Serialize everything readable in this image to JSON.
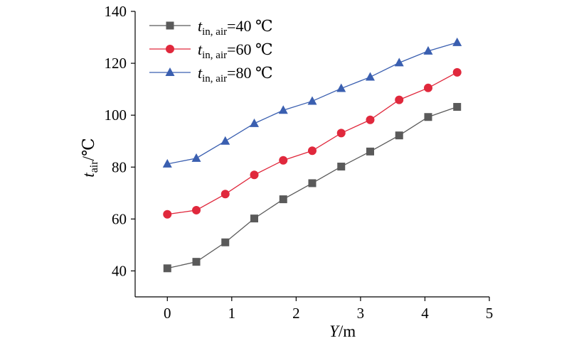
{
  "chart_data": {
    "type": "line",
    "xlabel": {
      "var": "Y",
      "unit": "/m"
    },
    "ylabel": {
      "var": "t",
      "sub": "air",
      "unit": "/℃"
    },
    "xlim": [
      -0.5,
      5
    ],
    "ylim": [
      30,
      140
    ],
    "xticks": [
      0,
      1,
      2,
      3,
      4,
      5
    ],
    "yticks": [
      40,
      60,
      80,
      100,
      120,
      140
    ],
    "legend_position": "top-left",
    "x": [
      0,
      0.45,
      0.9,
      1.35,
      1.8,
      2.25,
      2.7,
      3.15,
      3.6,
      4.05,
      4.5
    ],
    "series": [
      {
        "legend": {
          "var": "t",
          "sub": "in, air",
          "suffix": "=40 ℃"
        },
        "marker": "square",
        "color": "#5a5a5a",
        "values": [
          41,
          43.5,
          51,
          60.2,
          67.6,
          73.8,
          80.2,
          86,
          92.2,
          99.3,
          103.2
        ]
      },
      {
        "legend": {
          "var": "t",
          "sub": "in, air",
          "suffix": "=60 ℃"
        },
        "marker": "circle",
        "color": "#e0283c",
        "values": [
          61.8,
          63.4,
          69.6,
          77,
          82.6,
          86.3,
          93.1,
          98.2,
          105.9,
          110.5,
          116.5
        ]
      },
      {
        "legend": {
          "var": "t",
          "sub": "in, air",
          "suffix": "=80 ℃"
        },
        "marker": "triangle",
        "color": "#3a5fb0",
        "values": [
          81.2,
          83.4,
          90,
          96.8,
          101.9,
          105.4,
          110.3,
          114.7,
          120.2,
          124.7,
          128
        ]
      }
    ]
  }
}
